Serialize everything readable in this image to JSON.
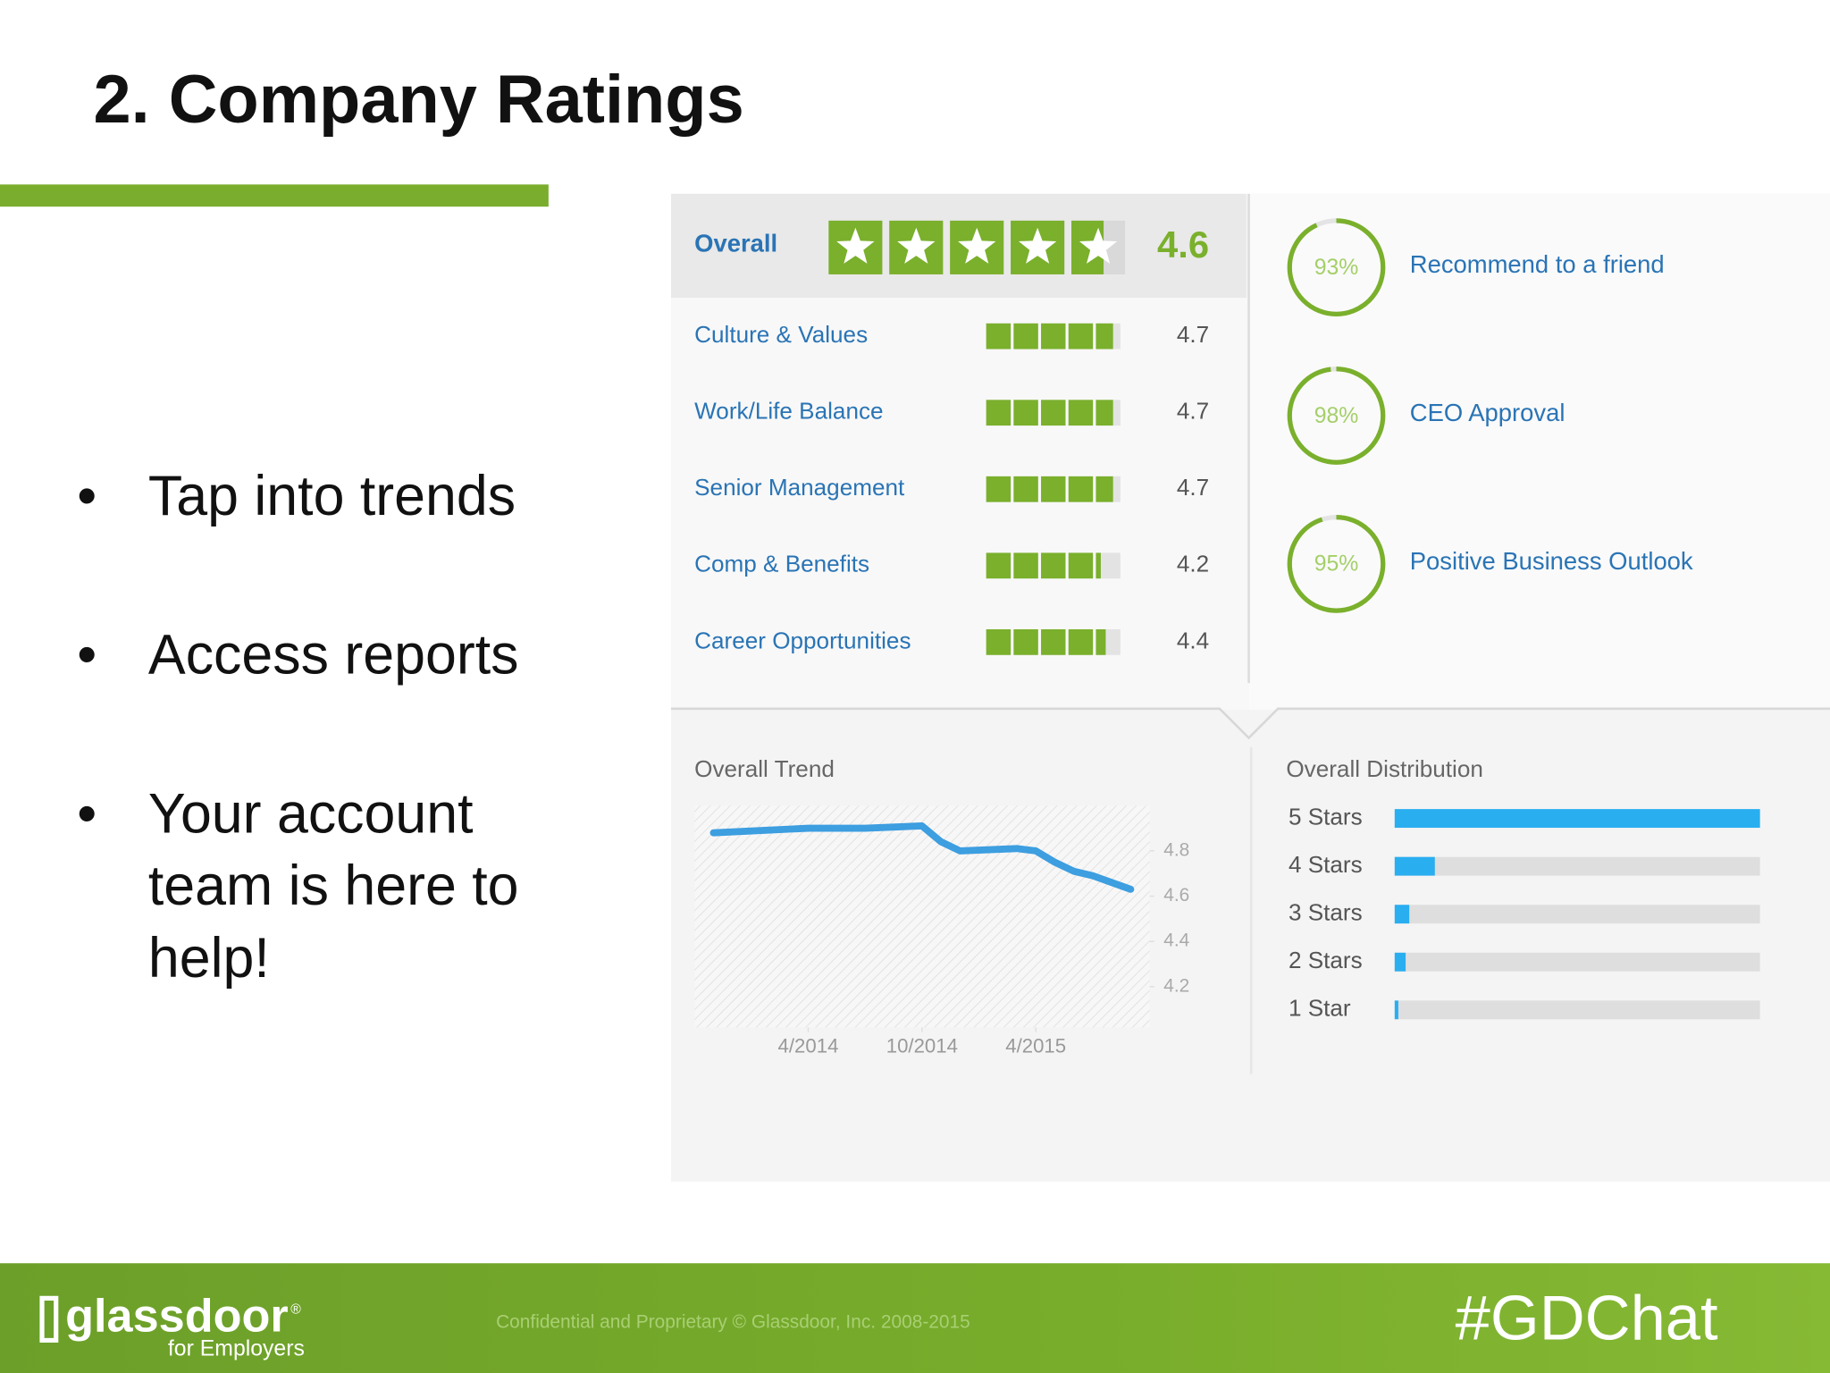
{
  "header": {
    "title": "2. Company Ratings"
  },
  "bullets": [
    "Tap into trends",
    "Access reports",
    "Your account team is here to help!"
  ],
  "ratings": {
    "xlim": [
      0,
      5
    ],
    "overall": {
      "label": "Overall",
      "value": 4.6
    },
    "categories": [
      {
        "label": "Culture & Values",
        "value": 4.7
      },
      {
        "label": "Work/Life Balance",
        "value": 4.7
      },
      {
        "label": "Senior Management",
        "value": 4.7
      },
      {
        "label": "Comp & Benefits",
        "value": 4.2
      },
      {
        "label": "Career Opportunities",
        "value": 4.4
      }
    ]
  },
  "approvals": [
    {
      "value": 93,
      "label": "93%",
      "name": "Recommend to a friend"
    },
    {
      "value": 98,
      "label": "98%",
      "name": "CEO Approval"
    },
    {
      "value": 95,
      "label": "95%",
      "name": "Positive Business Outlook"
    }
  ],
  "trend": {
    "type": "line",
    "title": "Overall Trend",
    "x": [
      "11/2013",
      "4/2014",
      "7/2014",
      "10/2014",
      "11/2014",
      "12/2014",
      "3/2015",
      "4/2015",
      "5/2015",
      "6/2015",
      "7/2015",
      "9/2015"
    ],
    "values": [
      4.88,
      4.9,
      4.9,
      4.91,
      4.84,
      4.8,
      4.81,
      4.8,
      4.75,
      4.71,
      4.69,
      4.63
    ],
    "color": "#3d9ee0",
    "xlim": [
      "10/2013",
      "10/2015"
    ],
    "xticks": [
      "4/2014",
      "10/2014",
      "4/2015"
    ],
    "ylim": [
      4.02,
      5.0
    ],
    "yticks": [
      4.8,
      4.6,
      4.4,
      4.2
    ]
  },
  "distribution": {
    "type": "bar",
    "title": "Overall Distribution",
    "categories": [
      "5 Stars",
      "4 Stars",
      "3 Stars",
      "2 Stars",
      "1 Star"
    ],
    "values": [
      100,
      11,
      4,
      3,
      1
    ],
    "color": "#29aef0",
    "xlim": [
      0,
      100
    ]
  },
  "footer": {
    "logo": "glassdoor",
    "registered": "®",
    "logo_sub": "for Employers",
    "copyright": "Confidential and Proprietary © Glassdoor, Inc. 2008-2015",
    "hashtag": "#GDChat"
  }
}
